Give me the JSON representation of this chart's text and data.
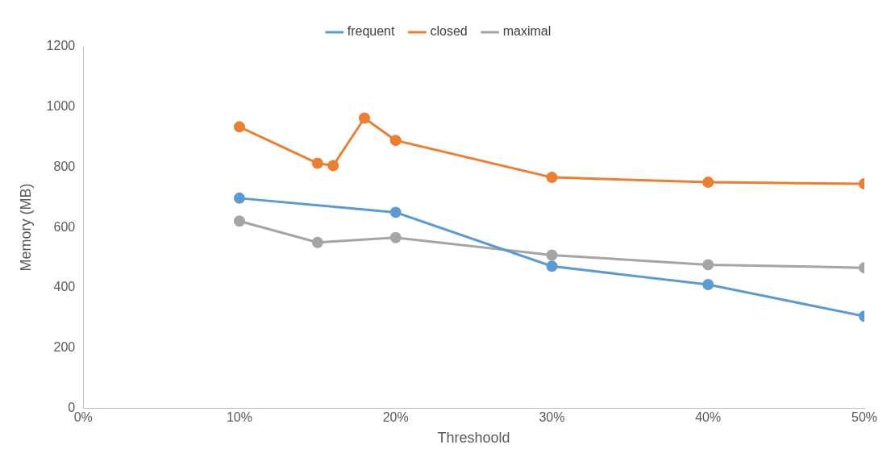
{
  "chart_data": {
    "type": "line",
    "xlabel": "Threshoold",
    "ylabel": "Memory (MB)",
    "xlim": [
      0,
      50
    ],
    "xticks": [
      {
        "value": 0,
        "label": "0%"
      },
      {
        "value": 10,
        "label": "10%"
      },
      {
        "value": 20,
        "label": "20%"
      },
      {
        "value": 30,
        "label": "30%"
      },
      {
        "value": 40,
        "label": "40%"
      },
      {
        "value": 50,
        "label": "50%"
      }
    ],
    "ylim": [
      0,
      1200
    ],
    "yticks": [
      0,
      200,
      400,
      600,
      800,
      1000,
      1200
    ],
    "grid": false,
    "legend": "top",
    "marker": "circle",
    "line_style": "solid",
    "series": [
      {
        "name": "frequent",
        "color": "#5b9bd5",
        "x": [
          10,
          20,
          30,
          40,
          50
        ],
        "values": [
          697,
          650,
          471,
          410,
          305
        ]
      },
      {
        "name": "closed",
        "color": "#ed7d31",
        "x": [
          10,
          15,
          16,
          18,
          20,
          30,
          40,
          50
        ],
        "values": [
          934,
          813,
          805,
          963,
          889,
          766,
          750,
          745
        ]
      },
      {
        "name": "maximal",
        "color": "#a5a5a5",
        "x": [
          10,
          15,
          20,
          30,
          40,
          50
        ],
        "values": [
          621,
          550,
          566,
          508,
          476,
          466
        ]
      }
    ]
  }
}
